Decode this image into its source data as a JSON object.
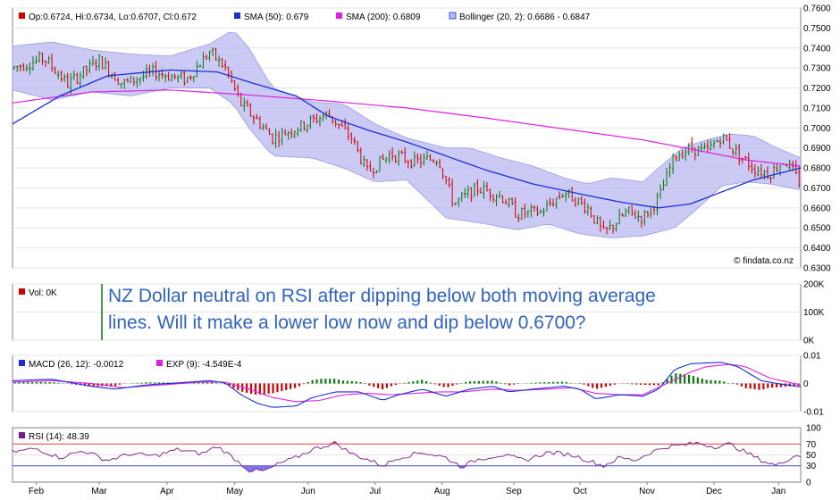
{
  "chart_data": [
    {
      "type": "candlestick",
      "legend": {
        "ohlc": "Op:0.6724, Hi:0.6734, Lo:0.6707, Cl:0.672",
        "sma50": "SMA (50): 0.679",
        "sma200": "SMA (200): 0.6809",
        "bollinger": "Bollinger (20, 2): 0.6686 - 0.6847"
      },
      "y_ticks": [
        "0.7600",
        "0.7500",
        "0.7400",
        "0.7300",
        "0.7200",
        "0.7100",
        "0.7000",
        "0.6900",
        "0.6800",
        "0.6700",
        "0.6600",
        "0.6500",
        "0.6400",
        "0.6300"
      ],
      "ylim": [
        0.63,
        0.76
      ],
      "watermark": "© findata.co.nz",
      "colors": {
        "up": "#0a7a0a",
        "down": "#d00000",
        "sma50": "#1a2fd8",
        "sma200": "#e020e0",
        "band_fill": "#b8b8f0",
        "band_line": "#9a9ae6"
      },
      "sma50_anchors": [
        [
          0,
          0.702
        ],
        [
          0.06,
          0.716
        ],
        [
          0.12,
          0.726
        ],
        [
          0.2,
          0.729
        ],
        [
          0.26,
          0.728
        ],
        [
          0.3,
          0.723
        ],
        [
          0.36,
          0.716
        ],
        [
          0.4,
          0.706
        ],
        [
          0.45,
          0.699
        ],
        [
          0.5,
          0.693
        ],
        [
          0.55,
          0.686
        ],
        [
          0.6,
          0.679
        ],
        [
          0.66,
          0.672
        ],
        [
          0.72,
          0.667
        ],
        [
          0.77,
          0.663
        ],
        [
          0.82,
          0.66
        ],
        [
          0.86,
          0.662
        ],
        [
          0.9,
          0.668
        ],
        [
          0.94,
          0.674
        ],
        [
          0.97,
          0.677
        ],
        [
          1,
          0.68
        ]
      ],
      "sma200_anchors": [
        [
          0,
          0.7125
        ],
        [
          0.1,
          0.718
        ],
        [
          0.2,
          0.719
        ],
        [
          0.3,
          0.7165
        ],
        [
          0.4,
          0.7135
        ],
        [
          0.5,
          0.71
        ],
        [
          0.6,
          0.705
        ],
        [
          0.7,
          0.6995
        ],
        [
          0.8,
          0.694
        ],
        [
          0.88,
          0.688
        ],
        [
          0.93,
          0.684
        ],
        [
          1,
          0.6809
        ]
      ],
      "price_anchors": [
        [
          0,
          0.73
        ],
        [
          0.04,
          0.735
        ],
        [
          0.07,
          0.722
        ],
        [
          0.11,
          0.734
        ],
        [
          0.14,
          0.722
        ],
        [
          0.18,
          0.728
        ],
        [
          0.22,
          0.724
        ],
        [
          0.25,
          0.738
        ],
        [
          0.27,
          0.73
        ],
        [
          0.29,
          0.712
        ],
        [
          0.31,
          0.704
        ],
        [
          0.33,
          0.695
        ],
        [
          0.36,
          0.7
        ],
        [
          0.4,
          0.707
        ],
        [
          0.43,
          0.695
        ],
        [
          0.45,
          0.678
        ],
        [
          0.48,
          0.687
        ],
        [
          0.51,
          0.683
        ],
        [
          0.54,
          0.685
        ],
        [
          0.56,
          0.662
        ],
        [
          0.59,
          0.67
        ],
        [
          0.62,
          0.666
        ],
        [
          0.64,
          0.657
        ],
        [
          0.67,
          0.658
        ],
        [
          0.7,
          0.668
        ],
        [
          0.73,
          0.66
        ],
        [
          0.75,
          0.647
        ],
        [
          0.78,
          0.658
        ],
        [
          0.8,
          0.655
        ],
        [
          0.82,
          0.665
        ],
        [
          0.84,
          0.686
        ],
        [
          0.86,
          0.69
        ],
        [
          0.88,
          0.688
        ],
        [
          0.9,
          0.696
        ],
        [
          0.92,
          0.687
        ],
        [
          0.94,
          0.68
        ],
        [
          0.96,
          0.677
        ],
        [
          0.98,
          0.684
        ],
        [
          1,
          0.672
        ]
      ],
      "band_upper_anchors": [
        [
          0,
          0.741
        ],
        [
          0.05,
          0.743
        ],
        [
          0.1,
          0.739
        ],
        [
          0.15,
          0.737
        ],
        [
          0.2,
          0.736
        ],
        [
          0.25,
          0.742
        ],
        [
          0.28,
          0.749
        ],
        [
          0.3,
          0.74
        ],
        [
          0.33,
          0.72
        ],
        [
          0.38,
          0.713
        ],
        [
          0.42,
          0.712
        ],
        [
          0.46,
          0.702
        ],
        [
          0.5,
          0.695
        ],
        [
          0.55,
          0.69
        ],
        [
          0.58,
          0.69
        ],
        [
          0.62,
          0.685
        ],
        [
          0.66,
          0.681
        ],
        [
          0.7,
          0.675
        ],
        [
          0.73,
          0.672
        ],
        [
          0.76,
          0.675
        ],
        [
          0.8,
          0.673
        ],
        [
          0.82,
          0.68
        ],
        [
          0.85,
          0.69
        ],
        [
          0.88,
          0.694
        ],
        [
          0.91,
          0.697
        ],
        [
          0.94,
          0.696
        ],
        [
          0.97,
          0.69
        ],
        [
          1,
          0.685
        ]
      ],
      "band_lower_anchors": [
        [
          0,
          0.719
        ],
        [
          0.05,
          0.714
        ],
        [
          0.1,
          0.718
        ],
        [
          0.15,
          0.716
        ],
        [
          0.2,
          0.72
        ],
        [
          0.25,
          0.72
        ],
        [
          0.28,
          0.712
        ],
        [
          0.3,
          0.7
        ],
        [
          0.33,
          0.686
        ],
        [
          0.38,
          0.685
        ],
        [
          0.42,
          0.68
        ],
        [
          0.46,
          0.673
        ],
        [
          0.5,
          0.674
        ],
        [
          0.55,
          0.655
        ],
        [
          0.6,
          0.652
        ],
        [
          0.64,
          0.649
        ],
        [
          0.68,
          0.652
        ],
        [
          0.72,
          0.647
        ],
        [
          0.76,
          0.645
        ],
        [
          0.8,
          0.646
        ],
        [
          0.84,
          0.65
        ],
        [
          0.87,
          0.66
        ],
        [
          0.9,
          0.671
        ],
        [
          0.93,
          0.673
        ],
        [
          0.96,
          0.672
        ],
        [
          1,
          0.669
        ]
      ]
    },
    {
      "type": "bar",
      "legend": "Vol: 0K",
      "y_ticks": [
        "200K",
        "100K",
        "0K"
      ],
      "ylim": [
        0,
        200
      ]
    },
    {
      "type": "line",
      "legend": {
        "macd": "MACD (26, 12): -0.0012",
        "exp": "EXP (9): -4.549E-4"
      },
      "y_ticks": [
        "0.01",
        "0",
        "-0.01"
      ],
      "ylim": [
        -0.01,
        0.01
      ],
      "colors": {
        "macd": "#1a2fd8",
        "exp": "#e020e0",
        "hist_pos": "#0a7a0a",
        "hist_neg": "#d00000"
      },
      "macd_anchors": [
        [
          0,
          0.001
        ],
        [
          0.05,
          0.0015
        ],
        [
          0.1,
          -0.001
        ],
        [
          0.13,
          -0.002
        ],
        [
          0.17,
          -0.0005
        ],
        [
          0.21,
          0.0002
        ],
        [
          0.25,
          0.001
        ],
        [
          0.27,
          0.0002
        ],
        [
          0.29,
          -0.004
        ],
        [
          0.31,
          -0.007
        ],
        [
          0.33,
          -0.0085
        ],
        [
          0.36,
          -0.008
        ],
        [
          0.38,
          -0.005
        ],
        [
          0.41,
          -0.003
        ],
        [
          0.44,
          -0.003
        ],
        [
          0.47,
          -0.006
        ],
        [
          0.49,
          -0.004
        ],
        [
          0.52,
          -0.002
        ],
        [
          0.55,
          -0.0045
        ],
        [
          0.58,
          -0.002
        ],
        [
          0.61,
          -0.001
        ],
        [
          0.63,
          -0.003
        ],
        [
          0.66,
          -0.002
        ],
        [
          0.7,
          -0.001
        ],
        [
          0.72,
          -0.002
        ],
        [
          0.74,
          -0.0055
        ],
        [
          0.77,
          -0.004
        ],
        [
          0.8,
          -0.0045
        ],
        [
          0.82,
          -0.002
        ],
        [
          0.84,
          0.005
        ],
        [
          0.86,
          0.007
        ],
        [
          0.88,
          0.0073
        ],
        [
          0.9,
          0.0075
        ],
        [
          0.92,
          0.006
        ],
        [
          0.95,
          0.001
        ],
        [
          0.97,
          0
        ],
        [
          1,
          -0.0012
        ]
      ],
      "exp_anchors": [
        [
          0,
          0.0005
        ],
        [
          0.05,
          0.001
        ],
        [
          0.1,
          0
        ],
        [
          0.14,
          -0.0015
        ],
        [
          0.19,
          -0.0005
        ],
        [
          0.24,
          0.0005
        ],
        [
          0.27,
          0.0005
        ],
        [
          0.3,
          -0.002
        ],
        [
          0.33,
          -0.005
        ],
        [
          0.36,
          -0.0065
        ],
        [
          0.39,
          -0.006
        ],
        [
          0.42,
          -0.004
        ],
        [
          0.45,
          -0.0035
        ],
        [
          0.48,
          -0.004
        ],
        [
          0.51,
          -0.0035
        ],
        [
          0.54,
          -0.003
        ],
        [
          0.57,
          -0.003
        ],
        [
          0.61,
          -0.002
        ],
        [
          0.64,
          -0.0025
        ],
        [
          0.68,
          -0.002
        ],
        [
          0.71,
          -0.0015
        ],
        [
          0.74,
          -0.0035
        ],
        [
          0.77,
          -0.004
        ],
        [
          0.8,
          -0.004
        ],
        [
          0.83,
          0
        ],
        [
          0.86,
          0.004
        ],
        [
          0.88,
          0.006
        ],
        [
          0.91,
          0.0068
        ],
        [
          0.93,
          0.006
        ],
        [
          0.96,
          0.002
        ],
        [
          1,
          -0.0005
        ]
      ]
    },
    {
      "type": "line",
      "legend": "RSI (14): 48.39",
      "y_ticks": [
        "100",
        "70",
        "50",
        "30",
        "0"
      ],
      "ylim": [
        0,
        100
      ],
      "colors": {
        "rsi": "#7a1a8a",
        "overbought": "#e04040",
        "oversold": "#4040e0",
        "fill_low": "#6a5ae0",
        "fill_high": "#e04050"
      },
      "rsi_anchors": [
        [
          0,
          55
        ],
        [
          0.03,
          62
        ],
        [
          0.06,
          45
        ],
        [
          0.09,
          58
        ],
        [
          0.12,
          40
        ],
        [
          0.15,
          52
        ],
        [
          0.18,
          48
        ],
        [
          0.21,
          60
        ],
        [
          0.24,
          52
        ],
        [
          0.26,
          66
        ],
        [
          0.28,
          45
        ],
        [
          0.3,
          22
        ],
        [
          0.32,
          20
        ],
        [
          0.34,
          35
        ],
        [
          0.36,
          45
        ],
        [
          0.38,
          60
        ],
        [
          0.41,
          72
        ],
        [
          0.43,
          52
        ],
        [
          0.45,
          42
        ],
        [
          0.47,
          30
        ],
        [
          0.49,
          45
        ],
        [
          0.52,
          55
        ],
        [
          0.55,
          45
        ],
        [
          0.57,
          28
        ],
        [
          0.59,
          42
        ],
        [
          0.62,
          50
        ],
        [
          0.65,
          40
        ],
        [
          0.68,
          55
        ],
        [
          0.71,
          50
        ],
        [
          0.73,
          40
        ],
        [
          0.75,
          30
        ],
        [
          0.77,
          45
        ],
        [
          0.79,
          40
        ],
        [
          0.81,
          55
        ],
        [
          0.83,
          65
        ],
        [
          0.85,
          68
        ],
        [
          0.87,
          72
        ],
        [
          0.89,
          65
        ],
        [
          0.91,
          70
        ],
        [
          0.93,
          55
        ],
        [
          0.95,
          40
        ],
        [
          0.97,
          30
        ],
        [
          0.99,
          48
        ],
        [
          1,
          48.39
        ]
      ]
    }
  ],
  "x_months": [
    "Feb",
    "Mar",
    "Apr",
    "May",
    "Jun",
    "Jul",
    "Aug",
    "Sep",
    "Oct",
    "Nov",
    "Dec",
    "Jan"
  ],
  "annotation": {
    "line1": "NZ Dollar neutral on RSI after dipping below both moving average",
    "line2": "lines. Will it make a lower low now and dip below 0.6700?"
  }
}
